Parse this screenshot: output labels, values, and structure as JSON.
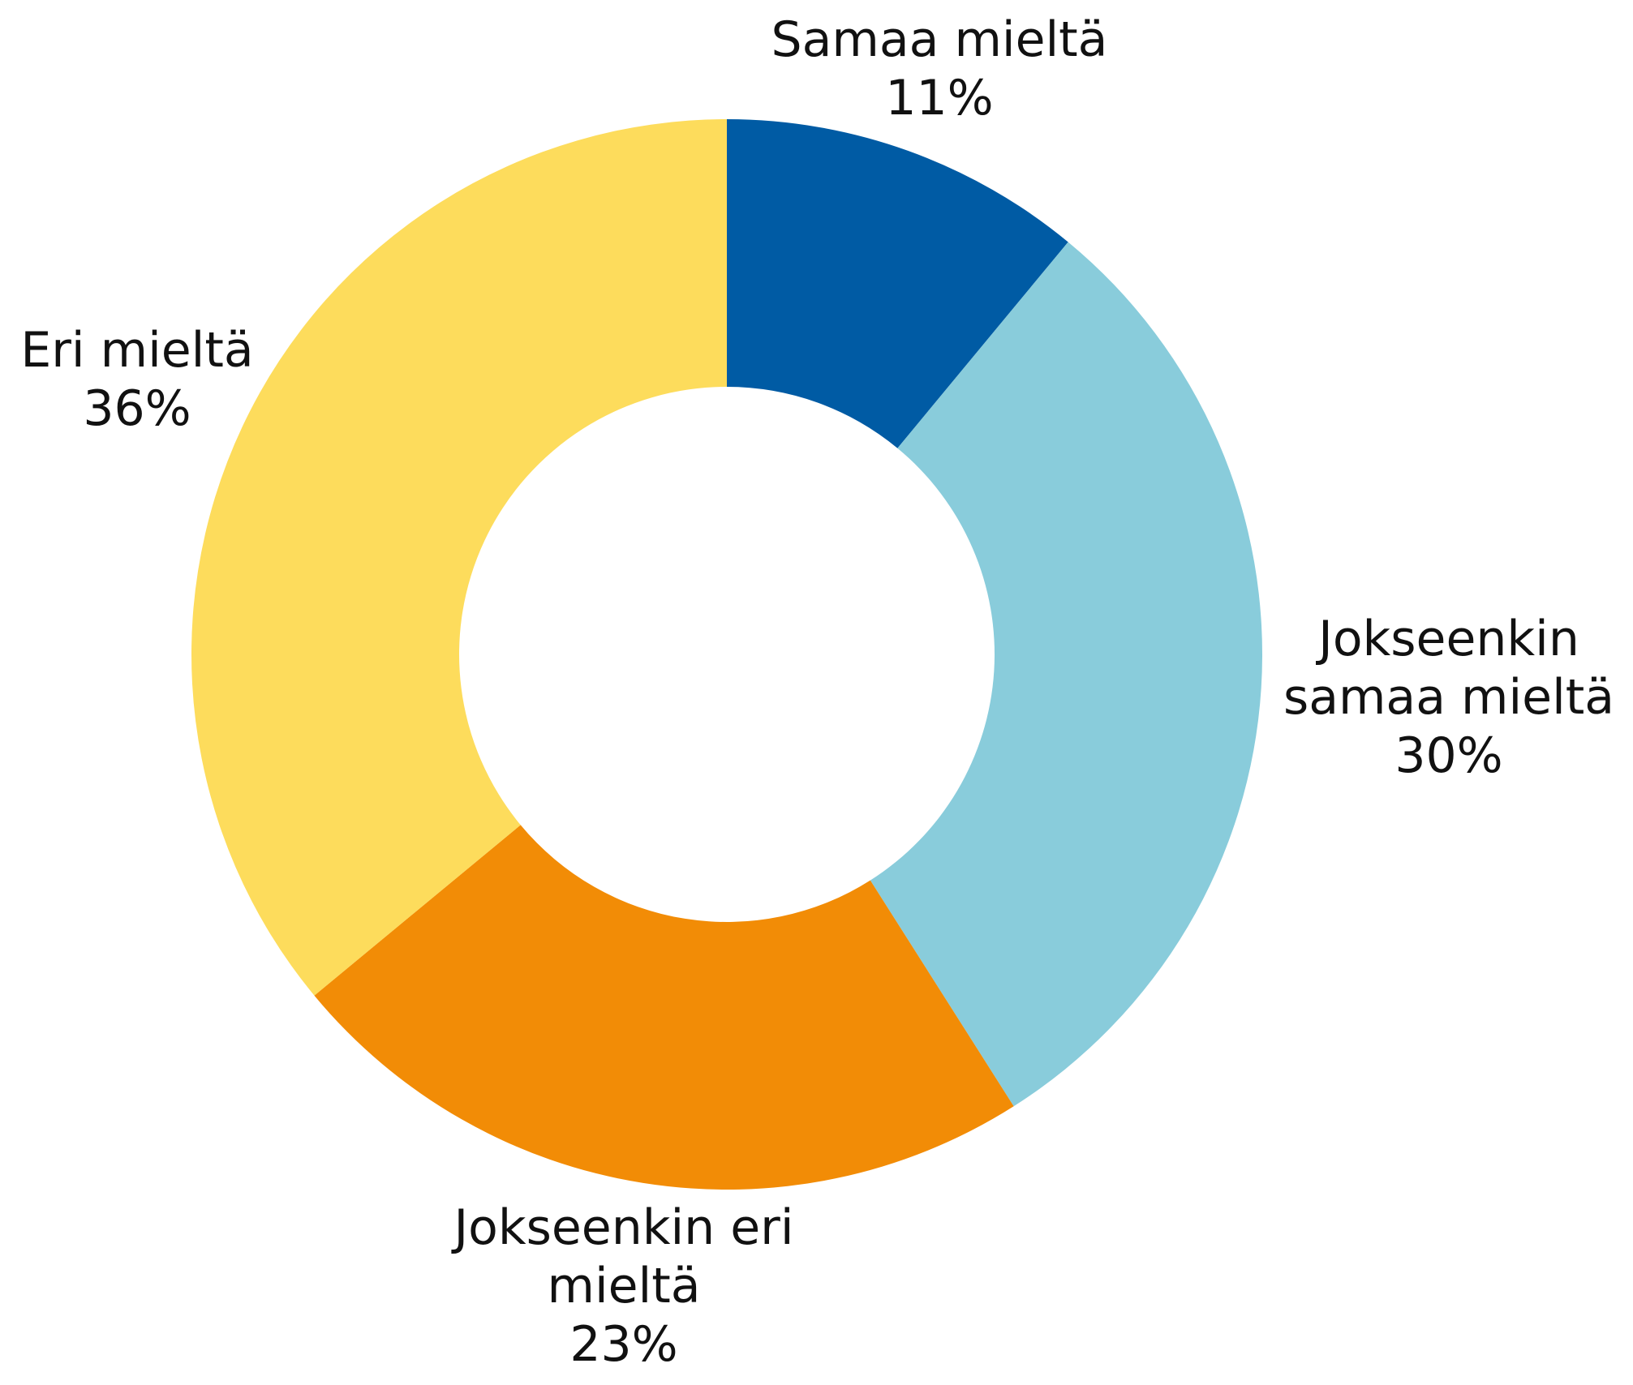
{
  "chart_data": {
    "type": "donut",
    "categories": [
      "Samaa mieltä",
      "Jokseenkin samaa mieltä",
      "Jokseenkin eri mieltä",
      "Eri mieltä"
    ],
    "values": [
      11,
      30,
      23,
      36
    ],
    "value_labels": [
      "11%",
      "30%",
      "23%",
      "36%"
    ],
    "colors": [
      "#005ba4",
      "#89ccdb",
      "#f28c06",
      "#fddc5c"
    ]
  }
}
